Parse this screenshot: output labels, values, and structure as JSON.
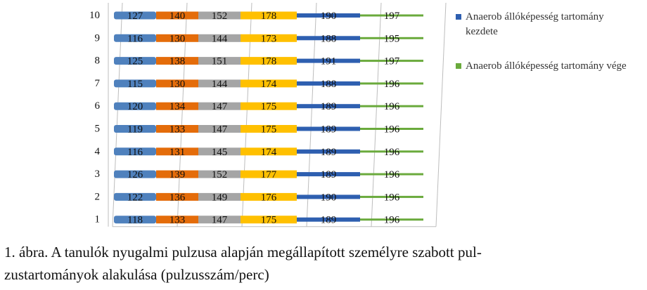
{
  "chart_data": {
    "type": "bar",
    "orientation": "horizontal",
    "stacked": true,
    "categories": [
      "1",
      "2",
      "3",
      "4",
      "5",
      "6",
      "7",
      "8",
      "9",
      "10"
    ],
    "series": [
      {
        "values": [
          118,
          122,
          126,
          116,
          119,
          120,
          115,
          125,
          116,
          127
        ],
        "color": "#4f81bd"
      },
      {
        "values": [
          133,
          136,
          139,
          131,
          133,
          134,
          130,
          138,
          130,
          140
        ],
        "color": "#e46c0a"
      },
      {
        "values": [
          147,
          149,
          152,
          145,
          147,
          147,
          144,
          151,
          144,
          152
        ],
        "color": "#a5a5a5"
      },
      {
        "values": [
          175,
          176,
          177,
          174,
          175,
          175,
          174,
          178,
          173,
          178
        ],
        "color": "#ffc000"
      },
      {
        "name": "Anaerob állóképesség tartomány kezdete",
        "values": [
          189,
          190,
          189,
          189,
          189,
          189,
          188,
          191,
          188,
          190
        ],
        "color": "#2e5fb0"
      },
      {
        "name": "Anaerob állóképesség tartomány vége",
        "values": [
          196,
          196,
          196,
          196,
          196,
          196,
          196,
          197,
          195,
          197
        ],
        "color": "#6aaa3c"
      }
    ],
    "grid": true,
    "legend_position": "right"
  },
  "caption": {
    "line1": "1. ábra. A tanulók nyugalmi pulzusa alapján megállapított személyre szabott pul-",
    "line2": "zustartományok alakulása (pulzusszám/perc)"
  }
}
